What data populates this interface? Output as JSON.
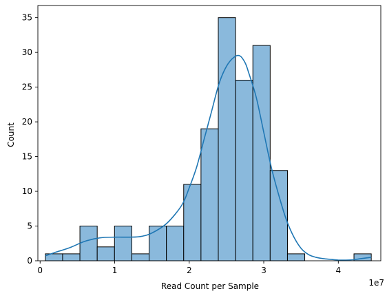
{
  "chart_data": {
    "type": "bar",
    "subtype": "histogram-with-kde",
    "xlabel": "Read Count per Sample",
    "ylabel": "Count",
    "x_offset_label": "1e7",
    "xlim": [
      -300000,
      45700000
    ],
    "ylim": [
      0,
      36.75
    ],
    "x_ticks": [
      {
        "value": 0,
        "label": "0"
      },
      {
        "value": 10000000,
        "label": "1"
      },
      {
        "value": 20000000,
        "label": "2"
      },
      {
        "value": 30000000,
        "label": "3"
      },
      {
        "value": 40000000,
        "label": "4"
      }
    ],
    "y_ticks": [
      {
        "value": 0,
        "label": "0"
      },
      {
        "value": 5,
        "label": "5"
      },
      {
        "value": 10,
        "label": "10"
      },
      {
        "value": 15,
        "label": "15"
      },
      {
        "value": 20,
        "label": "20"
      },
      {
        "value": 25,
        "label": "25"
      },
      {
        "value": 30,
        "label": "30"
      },
      {
        "value": 35,
        "label": "35"
      }
    ],
    "bins": [
      {
        "x0": 700000,
        "x1": 3020000,
        "count": 1
      },
      {
        "x0": 3020000,
        "x1": 5340000,
        "count": 1
      },
      {
        "x0": 5340000,
        "x1": 7660000,
        "count": 5
      },
      {
        "x0": 7660000,
        "x1": 9980000,
        "count": 2
      },
      {
        "x0": 9980000,
        "x1": 12300000,
        "count": 5
      },
      {
        "x0": 12300000,
        "x1": 14620000,
        "count": 1
      },
      {
        "x0": 14620000,
        "x1": 16940000,
        "count": 5
      },
      {
        "x0": 16940000,
        "x1": 19260000,
        "count": 5
      },
      {
        "x0": 19260000,
        "x1": 21580000,
        "count": 11
      },
      {
        "x0": 21580000,
        "x1": 23900000,
        "count": 19
      },
      {
        "x0": 23900000,
        "x1": 26220000,
        "count": 35
      },
      {
        "x0": 26220000,
        "x1": 28540000,
        "count": 26
      },
      {
        "x0": 28540000,
        "x1": 30860000,
        "count": 31
      },
      {
        "x0": 30860000,
        "x1": 33180000,
        "count": 13
      },
      {
        "x0": 33180000,
        "x1": 35500000,
        "count": 1
      },
      {
        "x0": 42100000,
        "x1": 44420000,
        "count": 1
      }
    ],
    "kde": {
      "x": [
        700000,
        2000000,
        4000000,
        6000000,
        8000000,
        10000000,
        12000000,
        13500000,
        15000000,
        17000000,
        19000000,
        20000000,
        21000000,
        22000000,
        23000000,
        24000000,
        25000000,
        26000000,
        26800000,
        27500000,
        28000000,
        29000000,
        30000000,
        31000000,
        32000000,
        33000000,
        34000000,
        35000000,
        36000000,
        37000000,
        38000000,
        39000000,
        40000000,
        41000000,
        42000000,
        43000000,
        44420000
      ],
      "y": [
        0.7,
        1.2,
        1.9,
        2.8,
        3.3,
        3.4,
        3.4,
        3.5,
        4.0,
        5.4,
        8.0,
        10.5,
        13.5,
        17.5,
        21.5,
        25.5,
        28.0,
        29.3,
        29.5,
        28.5,
        27.0,
        23.5,
        18.5,
        13.5,
        9.5,
        6.0,
        3.5,
        1.8,
        0.9,
        0.5,
        0.3,
        0.2,
        0.1,
        0.1,
        0.15,
        0.3,
        0.5
      ]
    },
    "bar_fill": "#8ab9dc",
    "bar_edge": "#000000",
    "kde_color": "#1f77b4"
  }
}
